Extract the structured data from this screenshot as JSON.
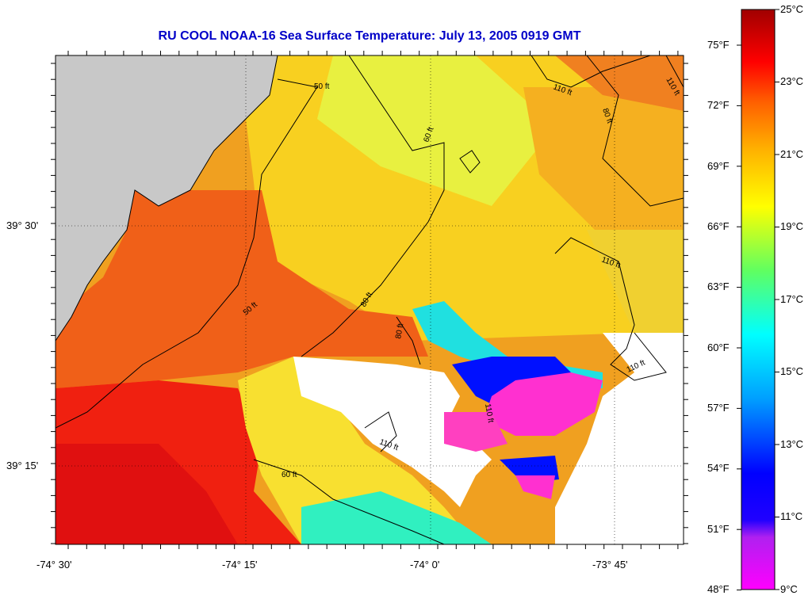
{
  "title": "RU COOL  NOAA-16  Sea Surface Temperature:  July 13, 2005 0919 GMT",
  "lat_labels": [
    "39° 30'",
    "39° 15'"
  ],
  "lon_labels": [
    "-74° 30'",
    "-74° 15'",
    "-74° 0'",
    "-73° 45'"
  ],
  "colorbar": {
    "celsius_labels": [
      "25°C",
      "23°C",
      "21°C",
      "19°C",
      "17°C",
      "15°C",
      "13°C",
      "11°C",
      "9°C"
    ],
    "fahrenheit_labels": [
      "75°F",
      "72°F",
      "69°F",
      "66°F",
      "63°F",
      "60°F",
      "57°F",
      "54°F",
      "51°F",
      "48°F"
    ],
    "colors": [
      "#ff00ff",
      "#a020f0",
      "#0000ff",
      "#00bfff",
      "#00ffff",
      "#40ff80",
      "#ffff00",
      "#ffb000",
      "#ff6000",
      "#ff0000",
      "#a00000"
    ]
  },
  "contour_labels": [
    "50 ft",
    "60 ft",
    "80 ft",
    "110 ft"
  ],
  "colors": {
    "land": "#c8c8c8",
    "no_data": "#ffffff",
    "title": "#0000c8"
  }
}
